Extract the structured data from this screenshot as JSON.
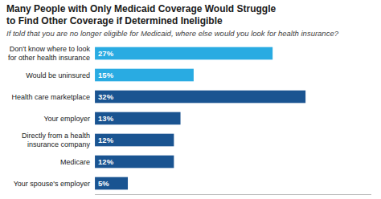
{
  "chart_data": {
    "type": "bar",
    "orientation": "horizontal",
    "title": "Many People with Only Medicaid Coverage Would Struggle\nto Find Other Coverage if Determined Ineligible",
    "subtitle": "If told that you are no longer eligible for Medicaid, where else would you look for health insurance?",
    "categories": [
      "Don't know where to look\nfor other health insurance",
      "Would be uninsured",
      "Health care marketplace",
      "Your employer",
      "Directly from a health\ninsurance company",
      "Medicare",
      "Your spouse's employer"
    ],
    "values": [
      27,
      15,
      32,
      13,
      12,
      12,
      5
    ],
    "value_labels": [
      "27%",
      "15%",
      "32%",
      "13%",
      "12%",
      "12%",
      "5%"
    ],
    "colors": [
      "#29abe2",
      "#29abe2",
      "#1a5491",
      "#1a5491",
      "#1a5491",
      "#1a5491",
      "#1a5491"
    ],
    "xlim": [
      0,
      42
    ],
    "data_labels": true,
    "grid": false,
    "tick_labels": "y"
  }
}
